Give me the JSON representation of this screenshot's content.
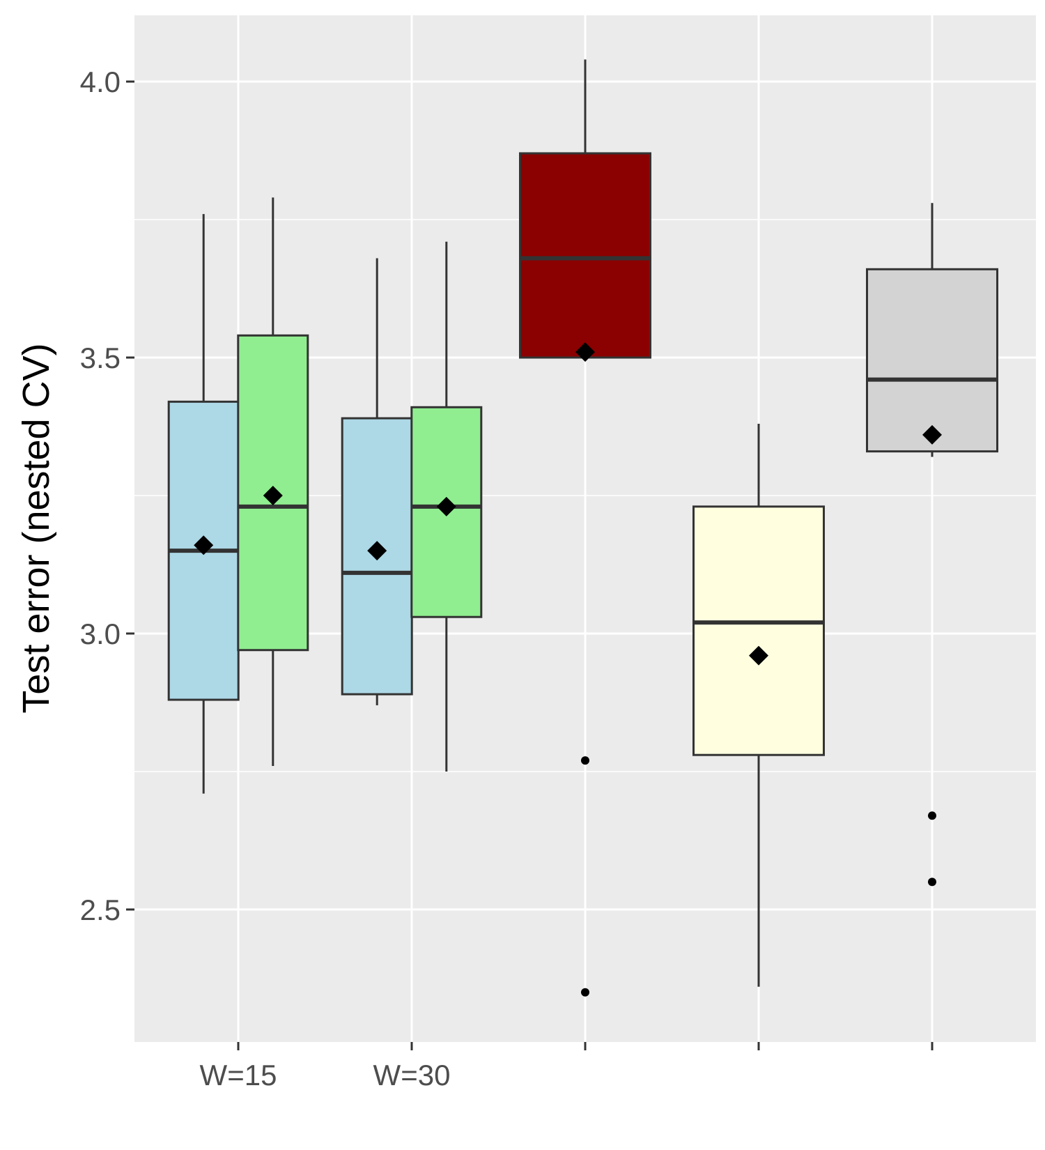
{
  "chart_data": {
    "type": "boxplot",
    "ylabel": "Test error (nested CV)",
    "xlabel": "",
    "ylim": [
      2.26,
      4.12
    ],
    "y_ticks": [
      2.5,
      3.0,
      3.5,
      4.0
    ],
    "y_tick_labels": [
      "2.5",
      "3.0",
      "3.5",
      "4.0"
    ],
    "x_ticks": [
      1,
      2,
      3,
      4,
      5
    ],
    "x_tick_labels": [
      "W=15",
      "W=30",
      "",
      "",
      ""
    ],
    "grid": true,
    "legend": "none",
    "boxes": [
      {
        "x": 1,
        "offset": -0.2,
        "fill": "#add8e6",
        "whisker_low": 2.71,
        "q1": 2.88,
        "median": 3.15,
        "q3": 3.42,
        "whisker_high": 3.76,
        "mean": 3.16,
        "outliers": []
      },
      {
        "x": 1,
        "offset": 0.2,
        "fill": "#90ee90",
        "whisker_low": 2.76,
        "q1": 2.97,
        "median": 3.23,
        "q3": 3.54,
        "whisker_high": 3.79,
        "mean": 3.25,
        "outliers": []
      },
      {
        "x": 2,
        "offset": -0.2,
        "fill": "#add8e6",
        "whisker_low": 2.87,
        "q1": 2.89,
        "median": 3.11,
        "q3": 3.39,
        "whisker_high": 3.68,
        "mean": 3.15,
        "outliers": []
      },
      {
        "x": 2,
        "offset": 0.2,
        "fill": "#90ee90",
        "whisker_low": 2.75,
        "q1": 3.03,
        "median": 3.23,
        "q3": 3.41,
        "whisker_high": 3.71,
        "mean": 3.23,
        "outliers": []
      },
      {
        "x": 3,
        "offset": 0,
        "fill": "#8b0000",
        "whisker_low": 3.5,
        "q1": 3.5,
        "median": 3.68,
        "q3": 3.87,
        "whisker_high": 4.04,
        "mean": 3.51,
        "outliers": [
          2.77,
          2.35
        ]
      },
      {
        "x": 4,
        "offset": 0,
        "fill": "#ffffe0",
        "whisker_low": 2.36,
        "q1": 2.78,
        "median": 3.02,
        "q3": 3.23,
        "whisker_high": 3.38,
        "mean": 2.96,
        "outliers": []
      },
      {
        "x": 5,
        "offset": 0,
        "fill": "#d3d3d3",
        "whisker_low": 3.32,
        "q1": 3.33,
        "median": 3.46,
        "q3": 3.66,
        "whisker_high": 3.78,
        "mean": 3.36,
        "outliers": [
          2.67,
          2.55
        ]
      }
    ]
  }
}
